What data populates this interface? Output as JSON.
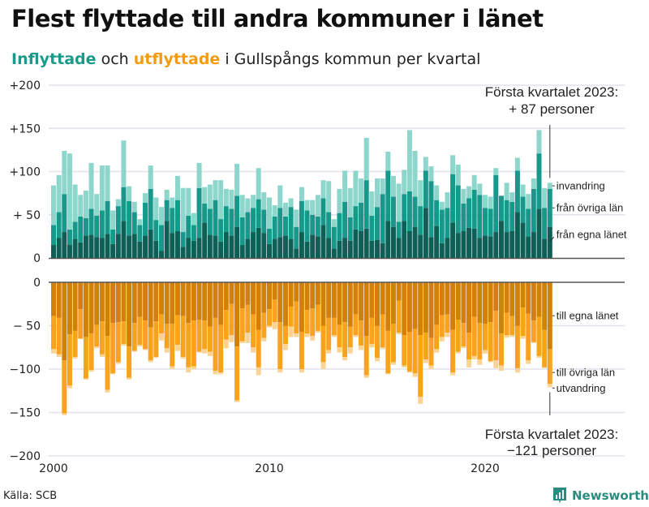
{
  "header": {
    "title": "Flest flyttade till andra kommuner i länet",
    "subtitle_in": "Inflyttade",
    "subtitle_mid": " och ",
    "subtitle_out": "utflyttade",
    "subtitle_rest": " i Gullspångs kommun per kvartal"
  },
  "footer": {
    "source": "Källa: SCB",
    "brand": "Newsworthy"
  },
  "colors": {
    "in_egna": "#0e5f56",
    "in_ovriga": "#16988a",
    "in_invandring": "#8dd6cc",
    "out_egna": "#d3800a",
    "out_ovriga": "#f9a21e",
    "out_utvandring": "#fbd394",
    "grid": "#e2e2ea",
    "axis": "#555555",
    "brand": "#2a8c7e"
  },
  "chart_data": [
    {
      "type": "bar",
      "stacked": true,
      "title": "Inflyttade",
      "xlabel": "",
      "ylabel": "",
      "ylim": [
        0,
        200
      ],
      "yticks": [
        0,
        50,
        100,
        150,
        200
      ],
      "ytick_labels": [
        "0",
        "+ 50",
        "+100",
        "+150",
        "+200"
      ],
      "grid": true,
      "x_start": "2000 Q1",
      "x_end": "2023 Q1",
      "xticks": [
        2000,
        2010,
        2020
      ],
      "xtick_labels": [
        "2000",
        "2010",
        "2020"
      ],
      "series": [
        {
          "name": "från egna länet",
          "values": [
            15,
            23,
            30,
            15,
            22,
            18,
            26,
            27,
            24,
            23,
            28,
            16,
            28,
            43,
            26,
            28,
            19,
            26,
            33,
            20,
            8,
            43,
            29,
            31,
            13,
            23,
            20,
            23,
            41,
            27,
            26,
            19,
            30,
            26,
            36,
            15,
            22,
            30,
            35,
            29,
            16,
            22,
            24,
            26,
            22,
            11,
            30,
            19,
            27,
            25,
            38,
            23,
            11,
            20,
            23,
            20,
            33,
            31,
            34,
            20,
            21,
            17,
            43,
            36,
            23,
            43,
            31,
            36,
            27,
            58,
            24,
            37,
            17,
            23,
            41,
            29,
            31,
            35,
            34,
            23,
            26,
            25,
            30,
            43,
            30,
            31,
            53,
            41,
            25,
            30,
            57,
            22,
            36
          ]
        },
        {
          "name": "från övriga län",
          "values": [
            23,
            30,
            44,
            18,
            20,
            30,
            20,
            30,
            25,
            32,
            38,
            17,
            32,
            39,
            40,
            25,
            19,
            38,
            47,
            24,
            30,
            24,
            29,
            36,
            17,
            26,
            18,
            58,
            22,
            30,
            41,
            26,
            30,
            31,
            36,
            32,
            31,
            28,
            33,
            27,
            18,
            26,
            34,
            22,
            37,
            25,
            36,
            36,
            23,
            23,
            31,
            30,
            25,
            32,
            42,
            27,
            27,
            33,
            56,
            29,
            38,
            57,
            58,
            35,
            19,
            31,
            46,
            35,
            33,
            43,
            65,
            30,
            39,
            35,
            56,
            55,
            32,
            34,
            45,
            50,
            32,
            32,
            66,
            29,
            37,
            34,
            48,
            30,
            32,
            50,
            64,
            36,
            44
          ]
        },
        {
          "name": "invandring",
          "values": [
            46,
            43,
            50,
            88,
            43,
            25,
            32,
            53,
            25,
            52,
            41,
            22,
            8,
            54,
            17,
            12,
            7,
            11,
            27,
            26,
            21,
            12,
            12,
            28,
            51,
            32,
            14,
            29,
            19,
            28,
            23,
            45,
            20,
            22,
            37,
            26,
            16,
            15,
            36,
            20,
            36,
            13,
            26,
            16,
            10,
            20,
            16,
            12,
            17,
            25,
            21,
            36,
            9,
            28,
            36,
            34,
            41,
            28,
            49,
            28,
            33,
            18,
            22,
            24,
            44,
            28,
            71,
            53,
            30,
            16,
            17,
            17,
            9,
            18,
            22,
            24,
            17,
            14,
            17,
            13,
            15,
            14,
            8,
            0,
            20,
            11,
            15,
            14,
            17,
            12,
            27,
            23,
            7
          ]
        }
      ],
      "annotation": {
        "label": "Första kvartalet 2023:",
        "value": "+ 87 personer"
      },
      "legend": [
        "invandring",
        "från övriga län",
        "från egna länet"
      ],
      "legend_position": "right, at last bar"
    },
    {
      "type": "bar",
      "stacked": true,
      "title": "Utflyttade",
      "xlabel": "",
      "ylabel": "",
      "ylim": [
        -200,
        0
      ],
      "yticks": [
        0,
        -50,
        -100,
        -150,
        -200
      ],
      "ytick_labels": [
        "0",
        "− 50",
        "−100",
        "−150",
        "−200"
      ],
      "grid": true,
      "x_start": "2000 Q1",
      "x_end": "2023 Q1",
      "xticks": [
        2000,
        2010,
        2020
      ],
      "xtick_labels": [
        "2000",
        "2010",
        "2020"
      ],
      "series": [
        {
          "name": "till egna länet",
          "values": [
            -39,
            -41,
            -90,
            -60,
            -56,
            -31,
            -63,
            -59,
            -49,
            -45,
            -62,
            -47,
            -46,
            -45,
            -74,
            -47,
            -40,
            -44,
            -52,
            -45,
            -37,
            -48,
            -48,
            -38,
            -39,
            -47,
            -44,
            -43,
            -44,
            -51,
            -41,
            -49,
            -32,
            -25,
            -74,
            -30,
            -26,
            -37,
            -55,
            -35,
            -31,
            -20,
            -46,
            -50,
            -28,
            -22,
            -57,
            -32,
            -30,
            -26,
            -50,
            -41,
            -41,
            -49,
            -46,
            -51,
            -37,
            -44,
            -62,
            -41,
            -50,
            -37,
            -56,
            -48,
            -21,
            -61,
            -57,
            -54,
            -61,
            -58,
            -64,
            -49,
            -38,
            -37,
            -55,
            -43,
            -47,
            -58,
            -40,
            -47,
            -48,
            -46,
            -33,
            -59,
            -35,
            -39,
            -50,
            -29,
            -36,
            -44,
            -40,
            -55,
            -77
          ]
        },
        {
          "name": "till övriga län",
          "values": [
            -38,
            -42,
            -61,
            -59,
            -30,
            -34,
            -48,
            -42,
            -25,
            -38,
            -62,
            -58,
            -46,
            -26,
            -36,
            -32,
            -32,
            -33,
            -38,
            -41,
            -22,
            -28,
            -49,
            -34,
            -47,
            -51,
            -53,
            -37,
            -33,
            -29,
            -61,
            -55,
            -34,
            -36,
            -62,
            -38,
            -32,
            -38,
            -43,
            -29,
            -19,
            -26,
            -54,
            -21,
            -23,
            -37,
            -43,
            -27,
            -32,
            -30,
            -42,
            -37,
            -20,
            -26,
            -40,
            -24,
            -24,
            -29,
            -45,
            -30,
            -37,
            -38,
            -49,
            -44,
            -37,
            -35,
            -46,
            -51,
            -71,
            -31,
            -32,
            -28,
            -25,
            -21,
            -49,
            -37,
            -27,
            -31,
            -45,
            -42,
            -30,
            -45,
            -57,
            -37,
            -26,
            -22,
            -49,
            -33,
            -54,
            -25,
            -45,
            -43,
            -40
          ]
        },
        {
          "name": "utvandring",
          "values": [
            -5,
            -3,
            -2,
            -3,
            -2,
            0,
            -1,
            -2,
            -2,
            -3,
            -3,
            -1,
            -2,
            -2,
            -2,
            -1,
            -2,
            -1,
            -2,
            -1,
            -8,
            -5,
            -3,
            -7,
            -2,
            -6,
            -3,
            -1,
            -5,
            -5,
            -4,
            -2,
            -10,
            -8,
            -2,
            -2,
            -12,
            -6,
            -9,
            -4,
            -2,
            -8,
            -4,
            -7,
            -12,
            -4,
            -4,
            -4,
            -5,
            -2,
            -8,
            -4,
            -2,
            -6,
            -4,
            -7,
            -2,
            -5,
            -3,
            -4,
            -4,
            -2,
            -1,
            -3,
            -2,
            -2,
            -1,
            -4,
            -8,
            -4,
            -4,
            -4,
            -5,
            -5,
            -3,
            -2,
            -2,
            -9,
            -4,
            -6,
            -4,
            -1,
            -9,
            -6,
            -3,
            -2,
            -5,
            -3,
            -4,
            -1,
            -2,
            -1,
            -4
          ]
        }
      ],
      "annotation": {
        "label": "Första kvartalet 2023:",
        "value": "−121 personer"
      },
      "legend": [
        "till egna länet",
        "till övriga län",
        "utvandring"
      ],
      "legend_position": "right, at last bar"
    }
  ]
}
